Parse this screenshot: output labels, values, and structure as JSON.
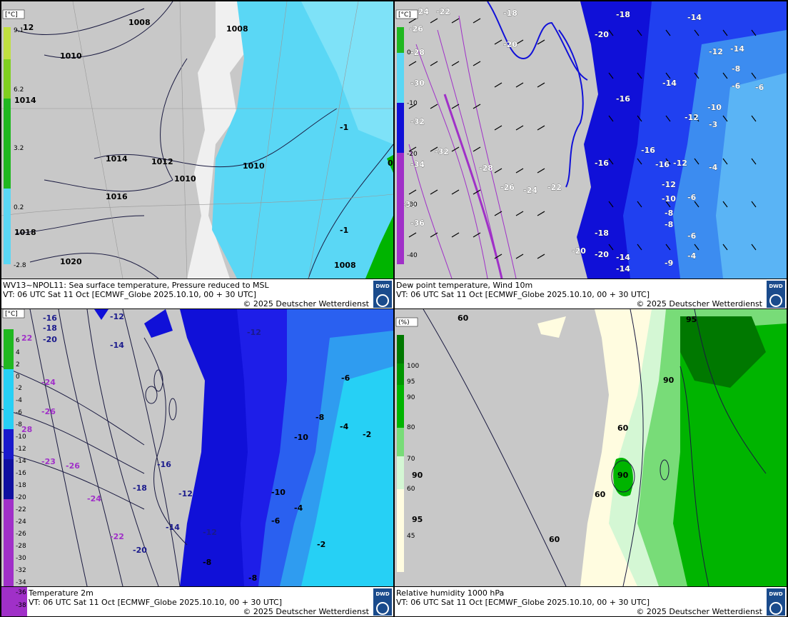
{
  "colors": {
    "land": "#c8c8c8",
    "snow": "#f0f0f0",
    "sea_light": "#5ad7f5",
    "sea_pale": "#a0ecfb",
    "blue_deep": "#1010d8",
    "blue_mid": "#2040f0",
    "blue_light": "#3c8cf0",
    "purple": "#a030c8",
    "green": "#00b400",
    "green_dark": "#007800",
    "isobar": "#1a1a40"
  },
  "panels": [
    {
      "id": "sst",
      "title": "WV13~NPOL11: Sea surface temperature,  Pressure reduced to MSL",
      "vt": "VT: 06 UTC Sat  11 Oct [ECMWF_Globe 2025.10.10, 00 + 30 UTC]",
      "copyright": "© 2025 Deutscher Wetterdienst",
      "unit": "[°C]",
      "legend": [
        "9.1",
        "6.2",
        "3.2",
        "0.2",
        "-2.8"
      ],
      "labels": [
        "12",
        "1008",
        "1008",
        "1010",
        "1014",
        "1014",
        "1012",
        "1010",
        "1010",
        "1016",
        "1018",
        "1020",
        "-1",
        "-1",
        "1008",
        "0"
      ]
    },
    {
      "id": "dewpoint",
      "title": "Dew point temperature, Wind 10m",
      "vt": "VT: 06 UTC Sat  11 Oct [ECMWF_Globe 2025.10.10, 00 + 30 UTC]",
      "copyright": "© 2025 Deutscher Wetterdienst",
      "unit": "[°C]",
      "legend": [
        "0",
        "-10",
        "-20",
        "-30",
        "-40"
      ],
      "labels": [
        "-24",
        "-22",
        "-18",
        "-18",
        "-14",
        "-26",
        "-20",
        "-20",
        "-14",
        "-12",
        "-16",
        "-28",
        "-8",
        "-30",
        "-14",
        "-6",
        "-6",
        "-32",
        "-16",
        "-12",
        "-10",
        "-34",
        "-30",
        "-32",
        "-28",
        "-16",
        "-16",
        "-12",
        "-4",
        "-3",
        "-26",
        "-24",
        "-22",
        "-12",
        "-10",
        "-6",
        "-8",
        "-8",
        "-6",
        "-36",
        "-18",
        "-20",
        "-20",
        "-14",
        "-14",
        "-4",
        "-9"
      ]
    },
    {
      "id": "t2m",
      "title": "Temperature 2m",
      "vt": "VT: 06 UTC Sat  11 Oct [ECMWF_Globe 2025.10.10, 00 + 30 UTC]",
      "copyright": "© 2025 Deutscher Wetterdienst",
      "unit": "[°C]",
      "legend": [
        "6",
        "4",
        "2",
        "0",
        "-2",
        "-4",
        "-6",
        "-8",
        "-10",
        "-12",
        "-14",
        "-16",
        "-18",
        "-20",
        "-22",
        "-24",
        "-26",
        "-28",
        "-30",
        "-32",
        "-34",
        "-36",
        "-38"
      ],
      "labels": [
        "-16",
        "-18",
        "-20",
        "-12",
        "-14",
        "-12",
        "22",
        "-24",
        "-26",
        "28",
        "-23",
        "-26",
        "-24",
        "-22",
        "-20",
        "-16",
        "-18",
        "-12",
        "-14",
        "-12",
        "-10",
        "-8",
        "-6",
        "-4",
        "-2",
        "-10",
        "-4",
        "-6",
        "-8",
        "-2",
        "-8"
      ]
    },
    {
      "id": "rh1000",
      "title": "Relative humidity 1000 hPa",
      "vt": "VT: 06 UTC Sat  11 Oct [ECMWF_Globe 2025.10.10, 00 + 30 UTC]",
      "copyright": "© 2025 Deutscher Wetterdienst",
      "unit": "(%)",
      "legend": [
        "100",
        "95",
        "90",
        "80",
        "70",
        "60",
        "45"
      ],
      "labels": [
        "60",
        "95",
        "90",
        "60",
        "90",
        "60",
        "90",
        "95",
        "60"
      ]
    }
  ]
}
